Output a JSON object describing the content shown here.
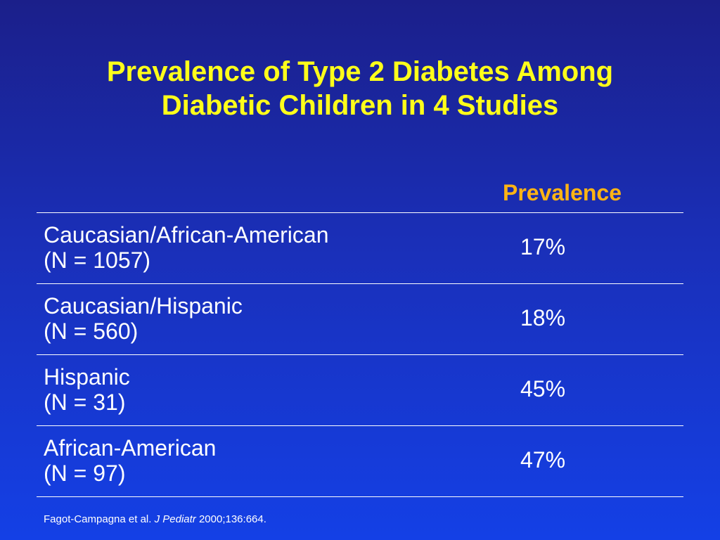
{
  "slide": {
    "title_line1": "Prevalence of Type 2 Diabetes Among",
    "title_line2": "Diabetic Children in 4 Studies"
  },
  "table": {
    "column_header": "Prevalence",
    "rows": [
      {
        "label": "Caucasian/African-American",
        "n": "(N = 1057)",
        "prevalence": "17%"
      },
      {
        "label": "Caucasian/Hispanic",
        "n": "(N = 560)",
        "prevalence": "18%"
      },
      {
        "label": "Hispanic",
        "n": "(N = 31)",
        "prevalence": "45%"
      },
      {
        "label": "African-American",
        "n": "(N = 97)",
        "prevalence": "47%"
      }
    ]
  },
  "citation": {
    "authors": "Fagot-Campagna et al. ",
    "journal": "J Pediatr",
    "ref": " 2000;136:664."
  },
  "colors": {
    "title": "#ffff1a",
    "header": "#ffb414",
    "background_top": "#1b1f8a",
    "background_bottom": "#1440e6",
    "text": "#ffffff"
  }
}
